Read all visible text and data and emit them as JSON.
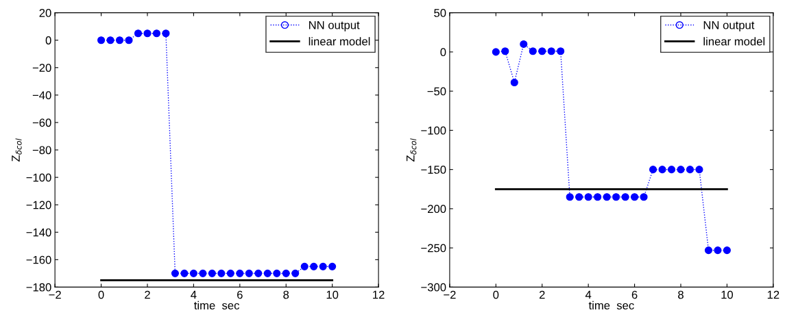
{
  "chart_data": [
    {
      "type": "line",
      "xlabel": "time  sec",
      "ylabel": "Z$_{δcol}$",
      "xlim": [
        -2,
        12
      ],
      "xticks": [
        -2,
        0,
        2,
        4,
        6,
        8,
        10,
        12
      ],
      "ylim": [
        -180,
        20
      ],
      "yticks": [
        -180,
        -160,
        -140,
        -120,
        -100,
        -80,
        -60,
        -40,
        -20,
        0,
        20
      ],
      "legend": "top right",
      "series": [
        {
          "name": "NN output",
          "color": "#0000ff",
          "marker": "circle",
          "line_style": "dotted",
          "x": [
            0,
            0.4,
            0.8,
            1.2,
            1.6,
            2.0,
            2.4,
            2.8,
            3.2,
            3.6,
            4.0,
            4.4,
            4.8,
            5.2,
            5.6,
            6.0,
            6.4,
            6.8,
            7.2,
            7.6,
            8.0,
            8.4,
            8.8,
            9.2,
            9.6,
            10.0
          ],
          "values": [
            0,
            0,
            0,
            0,
            5,
            5,
            5,
            5,
            -170,
            -170,
            -170,
            -170,
            -170,
            -170,
            -170,
            -170,
            -170,
            -170,
            -170,
            -170,
            -170,
            -170,
            -165,
            -165,
            -165,
            -165
          ]
        },
        {
          "name": "linear model",
          "color": "#000000",
          "marker": "none",
          "line_style": "solid",
          "x": [
            0,
            10
          ],
          "values": [
            -175,
            -175
          ]
        }
      ]
    },
    {
      "type": "line",
      "xlabel": "time  sec",
      "ylabel": "Z$_{δcol}$",
      "xlim": [
        -2,
        12
      ],
      "xticks": [
        -2,
        0,
        2,
        4,
        6,
        8,
        10,
        12
      ],
      "ylim": [
        -300,
        50
      ],
      "yticks": [
        -300,
        -250,
        -200,
        -150,
        -100,
        -50,
        0,
        50
      ],
      "legend": "top right",
      "series": [
        {
          "name": "NN output",
          "color": "#0000ff",
          "marker": "circle",
          "line_style": "dotted",
          "x": [
            0,
            0.4,
            0.8,
            1.2,
            1.6,
            2.0,
            2.4,
            2.8,
            3.2,
            3.6,
            4.0,
            4.4,
            4.8,
            5.2,
            5.6,
            6.0,
            6.4,
            6.8,
            7.2,
            7.6,
            8.0,
            8.4,
            8.8,
            9.2,
            9.6,
            10.0
          ],
          "values": [
            0,
            1,
            -39,
            10,
            1,
            1,
            1,
            1,
            -185,
            -185,
            -185,
            -185,
            -185,
            -185,
            -185,
            -185,
            -185,
            -150,
            -150,
            -150,
            -150,
            -150,
            -150,
            -253,
            -253,
            -253
          ]
        },
        {
          "name": "linear model",
          "color": "#000000",
          "marker": "none",
          "line_style": "solid",
          "x": [
            0,
            10
          ],
          "values": [
            -175,
            -175
          ]
        }
      ]
    }
  ]
}
